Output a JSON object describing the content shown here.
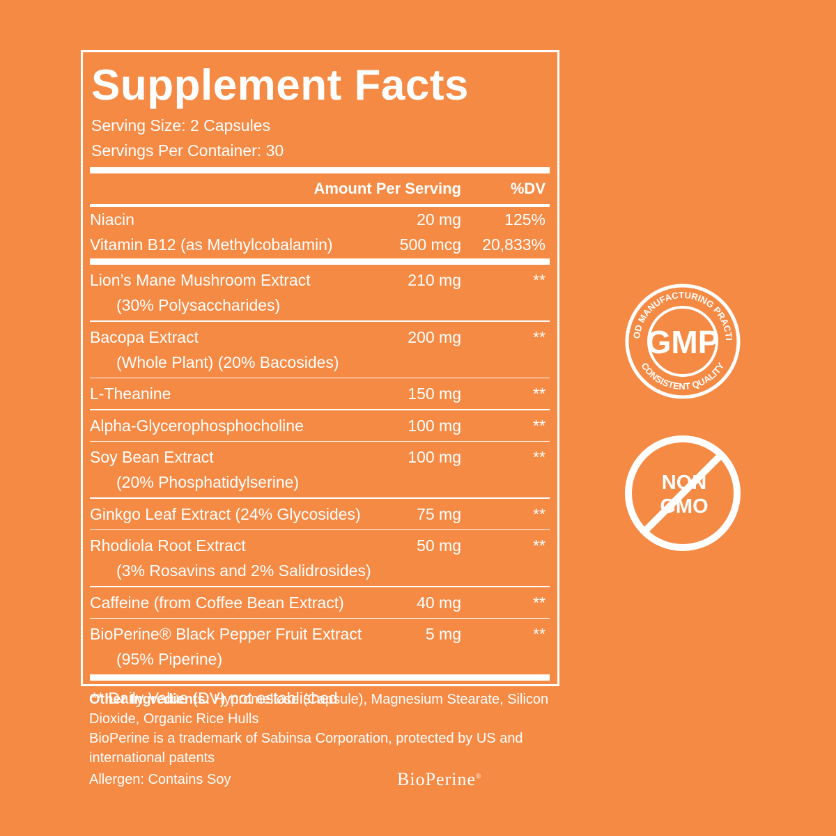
{
  "header": {
    "title": "Supplement Facts",
    "serving_size": "Serving Size: 2 Capsules",
    "servings_per_container": "Servings Per Container: 30"
  },
  "columns": {
    "amount": "Amount Per Serving",
    "dv": "%DV"
  },
  "vitamins": [
    {
      "name": "Niacin",
      "amount": "20 mg",
      "dv": "125%"
    },
    {
      "name": "Vitamin B12 (as Methylcobalamin)",
      "amount": "500 mcg",
      "dv": "20,833%"
    }
  ],
  "ingredients": [
    {
      "name": "Lion’s Mane Mushroom  Extract",
      "sub": "(30% Polysaccharides)",
      "amount": "210 mg",
      "dv": "**"
    },
    {
      "name": "Bacopa Extract",
      "sub": "(Whole Plant) (20% Bacosides)",
      "amount": "200 mg",
      "dv": "**"
    },
    {
      "name": "L-Theanine",
      "amount": "150 mg",
      "dv": "**"
    },
    {
      "name": "Alpha-Glycerophosphocholine",
      "amount": "100 mg",
      "dv": "**"
    },
    {
      "name": "Soy Bean Extract",
      "sub": "(20% Phosphatidylserine)",
      "amount": "100 mg",
      "dv": "**"
    },
    {
      "name": "Ginkgo Leaf Extract (24% Glycosides)",
      "amount": "75 mg",
      "dv": "**"
    },
    {
      "name": "Rhodiola Root Extract",
      "sub": "(3% Rosavins and 2% Salidrosides)",
      "amount": "50 mg",
      "dv": "**"
    },
    {
      "name": "Caffeine (from Coffee Bean Extract)",
      "amount": "40 mg",
      "dv": "**"
    },
    {
      "name": "BioPerine® Black Pepper Fruit Extract",
      "sub": "(95% Piperine)",
      "amount": "5 mg",
      "dv": "**"
    }
  ],
  "footnote": "** Daily Value (DV) not established",
  "other_ingredients": {
    "label": "Other Ingredients:",
    "text": "Hypromellose (Capsule), Magnesium Stearate, Silicon Dioxide, Organic Rice Hulls"
  },
  "trademark": "BioPerine is a trademark of Sabinsa Corporation, protected by US and international patents",
  "allergen": "Allergen: Contains Soy",
  "logo": {
    "name": "BioPerine",
    "mark": "®"
  },
  "badges": {
    "gmp": {
      "center": "GMP",
      "top": "GOOD MANUFACTURING PRACTICE",
      "bottom": "CONSISTENT QUALITY"
    },
    "non_gmo": {
      "line1": "NON",
      "line2": "GMO"
    }
  }
}
